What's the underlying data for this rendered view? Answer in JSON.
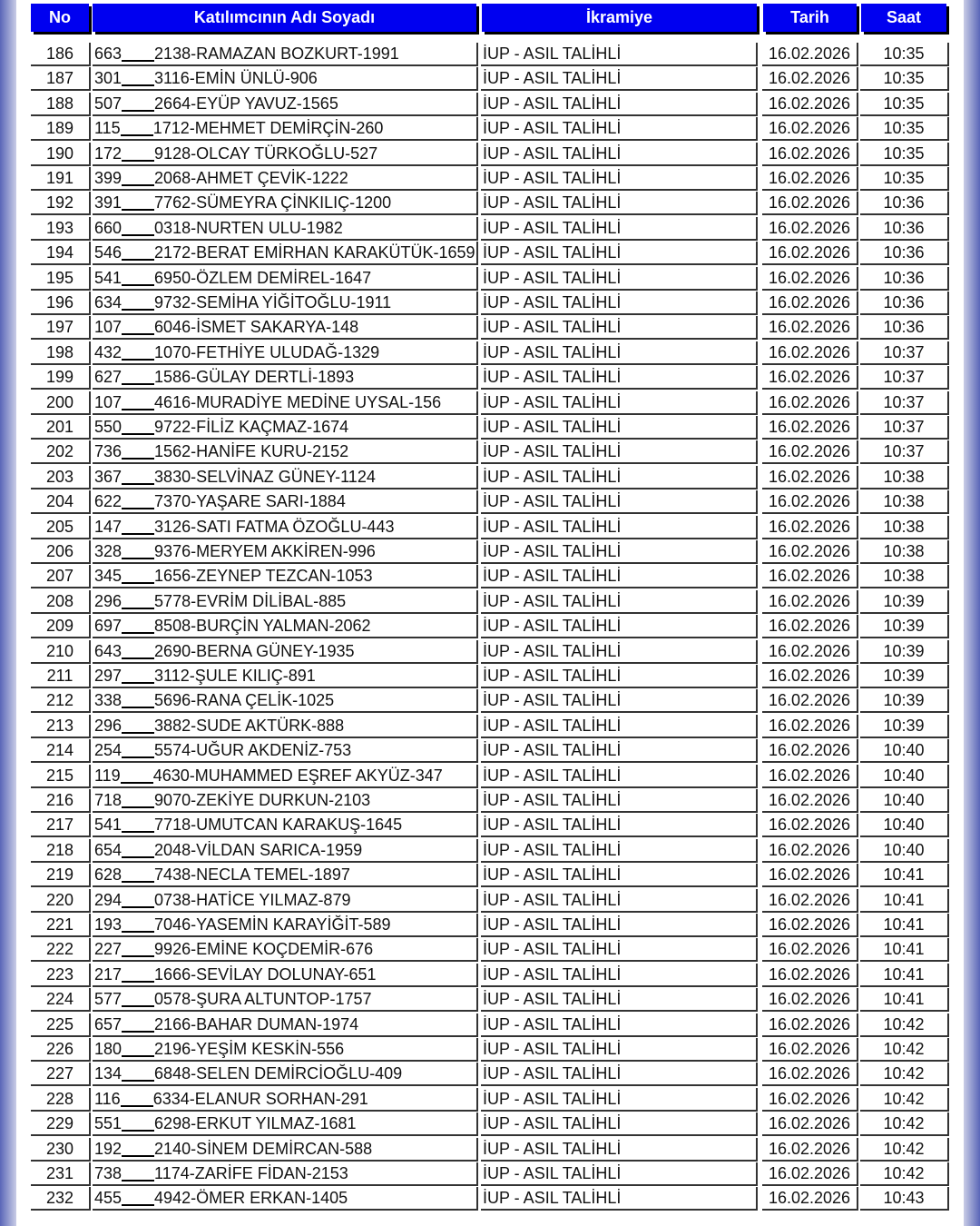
{
  "header": {
    "no": "No",
    "name": "Katılımcının Adı Soyadı",
    "prize": "İkramiye",
    "date": "Tarih",
    "time": "Saat"
  },
  "colors": {
    "header_bg": "#0000f0",
    "header_text": "#ffffff"
  },
  "rows": [
    [
      "186",
      "663",
      "2138-RAMAZAN BOZKURT-1991",
      "İUP - ASIL TALİHLİ",
      "16.02.2026",
      "10:35"
    ],
    [
      "187",
      "301",
      "3116-EMİN ÜNLÜ-906",
      "İUP - ASIL TALİHLİ",
      "16.02.2026",
      "10:35"
    ],
    [
      "188",
      "507",
      "2664-EYÜP YAVUZ-1565",
      "İUP - ASIL TALİHLİ",
      "16.02.2026",
      "10:35"
    ],
    [
      "189",
      "115",
      "1712-MEHMET DEMİRÇİN-260",
      "İUP - ASIL TALİHLİ",
      "16.02.2026",
      "10:35"
    ],
    [
      "190",
      "172",
      "9128-OLCAY TÜRKOĞLU-527",
      "İUP - ASIL TALİHLİ",
      "16.02.2026",
      "10:35"
    ],
    [
      "191",
      "399",
      "2068-AHMET ÇEVİK-1222",
      "İUP - ASIL TALİHLİ",
      "16.02.2026",
      "10:35"
    ],
    [
      "192",
      "391",
      "7762-SÜMEYRA ÇİNKILIÇ-1200",
      "İUP - ASIL TALİHLİ",
      "16.02.2026",
      "10:36"
    ],
    [
      "193",
      "660",
      "0318-NURTEN ULU-1982",
      "İUP - ASIL TALİHLİ",
      "16.02.2026",
      "10:36"
    ],
    [
      "194",
      "546",
      "2172-BERAT EMİRHAN KARAKÜTÜK-1659",
      "İUP - ASIL TALİHLİ",
      "16.02.2026",
      "10:36"
    ],
    [
      "195",
      "541",
      "6950-ÖZLEM DEMİREL-1647",
      "İUP - ASIL TALİHLİ",
      "16.02.2026",
      "10:36"
    ],
    [
      "196",
      "634",
      "9732-SEMİHA YİĞİTOĞLU-1911",
      "İUP - ASIL TALİHLİ",
      "16.02.2026",
      "10:36"
    ],
    [
      "197",
      "107",
      "6046-İSMET SAKARYA-148",
      "İUP - ASIL TALİHLİ",
      "16.02.2026",
      "10:36"
    ],
    [
      "198",
      "432",
      "1070-FETHİYE ULUDAĞ-1329",
      "İUP - ASIL TALİHLİ",
      "16.02.2026",
      "10:37"
    ],
    [
      "199",
      "627",
      "1586-GÜLAY DERTLİ-1893",
      "İUP - ASIL TALİHLİ",
      "16.02.2026",
      "10:37"
    ],
    [
      "200",
      "107",
      "4616-MURADİYE MEDİNE UYSAL-156",
      "İUP - ASIL TALİHLİ",
      "16.02.2026",
      "10:37"
    ],
    [
      "201",
      "550",
      "9722-FİLİZ KAÇMAZ-1674",
      "İUP - ASIL TALİHLİ",
      "16.02.2026",
      "10:37"
    ],
    [
      "202",
      "736",
      "1562-HANİFE KURU-2152",
      "İUP - ASIL TALİHLİ",
      "16.02.2026",
      "10:37"
    ],
    [
      "203",
      "367",
      "3830-SELVİNAZ GÜNEY-1124",
      "İUP - ASIL TALİHLİ",
      "16.02.2026",
      "10:38"
    ],
    [
      "204",
      "622",
      "7370-YAŞARE SARI-1884",
      "İUP - ASIL TALİHLİ",
      "16.02.2026",
      "10:38"
    ],
    [
      "205",
      "147",
      "3126-SATI FATMA ÖZOĞLU-443",
      "İUP - ASIL TALİHLİ",
      "16.02.2026",
      "10:38"
    ],
    [
      "206",
      "328",
      "9376-MERYEM AKKİREN-996",
      "İUP - ASIL TALİHLİ",
      "16.02.2026",
      "10:38"
    ],
    [
      "207",
      "345",
      "1656-ZEYNEP TEZCAN-1053",
      "İUP - ASIL TALİHLİ",
      "16.02.2026",
      "10:38"
    ],
    [
      "208",
      "296",
      "5778-EVRİM DİLİBAL-885",
      "İUP - ASIL TALİHLİ",
      "16.02.2026",
      "10:39"
    ],
    [
      "209",
      "697",
      "8508-BURÇİN YALMAN-2062",
      "İUP - ASIL TALİHLİ",
      "16.02.2026",
      "10:39"
    ],
    [
      "210",
      "643",
      "2690-BERNA GÜNEY-1935",
      "İUP - ASIL TALİHLİ",
      "16.02.2026",
      "10:39"
    ],
    [
      "211",
      "297",
      "3112-ŞULE KILIÇ-891",
      "İUP - ASIL TALİHLİ",
      "16.02.2026",
      "10:39"
    ],
    [
      "212",
      "338",
      "5696-RANA ÇELİK-1025",
      "İUP - ASIL TALİHLİ",
      "16.02.2026",
      "10:39"
    ],
    [
      "213",
      "296",
      "3882-SUDE AKTÜRK-888",
      "İUP - ASIL TALİHLİ",
      "16.02.2026",
      "10:39"
    ],
    [
      "214",
      "254",
      "5574-UĞUR AKDENİZ-753",
      "İUP - ASIL TALİHLİ",
      "16.02.2026",
      "10:40"
    ],
    [
      "215",
      "119",
      "4630-MUHAMMED EŞREF AKYÜZ-347",
      "İUP - ASIL TALİHLİ",
      "16.02.2026",
      "10:40"
    ],
    [
      "216",
      "718",
      "9070-ZEKİYE DURKUN-2103",
      "İUP - ASIL TALİHLİ",
      "16.02.2026",
      "10:40"
    ],
    [
      "217",
      "541",
      "7718-UMUTCAN KARAKUŞ-1645",
      "İUP - ASIL TALİHLİ",
      "16.02.2026",
      "10:40"
    ],
    [
      "218",
      "654",
      "2048-VİLDAN SARICA-1959",
      "İUP - ASIL TALİHLİ",
      "16.02.2026",
      "10:40"
    ],
    [
      "219",
      "628",
      "7438-NECLA TEMEL-1897",
      "İUP - ASIL TALİHLİ",
      "16.02.2026",
      "10:41"
    ],
    [
      "220",
      "294",
      "0738-HATİCE YILMAZ-879",
      "İUP - ASIL TALİHLİ",
      "16.02.2026",
      "10:41"
    ],
    [
      "221",
      "193",
      "7046-YASEMİN KARAYİĞİT-589",
      "İUP - ASIL TALİHLİ",
      "16.02.2026",
      "10:41"
    ],
    [
      "222",
      "227",
      "9926-EMİNE KOÇDEMİR-676",
      "İUP - ASIL TALİHLİ",
      "16.02.2026",
      "10:41"
    ],
    [
      "223",
      "217",
      "1666-SEVİLAY DOLUNAY-651",
      "İUP - ASIL TALİHLİ",
      "16.02.2026",
      "10:41"
    ],
    [
      "224",
      "577",
      "0578-ŞURA ALTUNTOP-1757",
      "İUP - ASIL TALİHLİ",
      "16.02.2026",
      "10:41"
    ],
    [
      "225",
      "657",
      "2166-BAHAR DUMAN-1974",
      "İUP - ASIL TALİHLİ",
      "16.02.2026",
      "10:42"
    ],
    [
      "226",
      "180",
      "2196-YEŞİM KESKİN-556",
      "İUP - ASIL TALİHLİ",
      "16.02.2026",
      "10:42"
    ],
    [
      "227",
      "134",
      "6848-SELEN DEMİRCİOĞLU-409",
      "İUP - ASIL TALİHLİ",
      "16.02.2026",
      "10:42"
    ],
    [
      "228",
      "116",
      "6334-ELANUR SORHAN-291",
      "İUP - ASIL TALİHLİ",
      "16.02.2026",
      "10:42"
    ],
    [
      "229",
      "551",
      "6298-ERKUT YILMAZ-1681",
      "İUP - ASIL TALİHLİ",
      "16.02.2026",
      "10:42"
    ],
    [
      "230",
      "192",
      "2140-SİNEM DEMİRCAN-588",
      "İUP - ASIL TALİHLİ",
      "16.02.2026",
      "10:42"
    ],
    [
      "231",
      "738",
      "1174-ZARİFE FİDAN-2153",
      "İUP - ASIL TALİHLİ",
      "16.02.2026",
      "10:42"
    ],
    [
      "232",
      "455",
      "4942-ÖMER ERKAN-1405",
      "İUP - ASIL TALİHLİ",
      "16.02.2026",
      "10:43"
    ]
  ]
}
